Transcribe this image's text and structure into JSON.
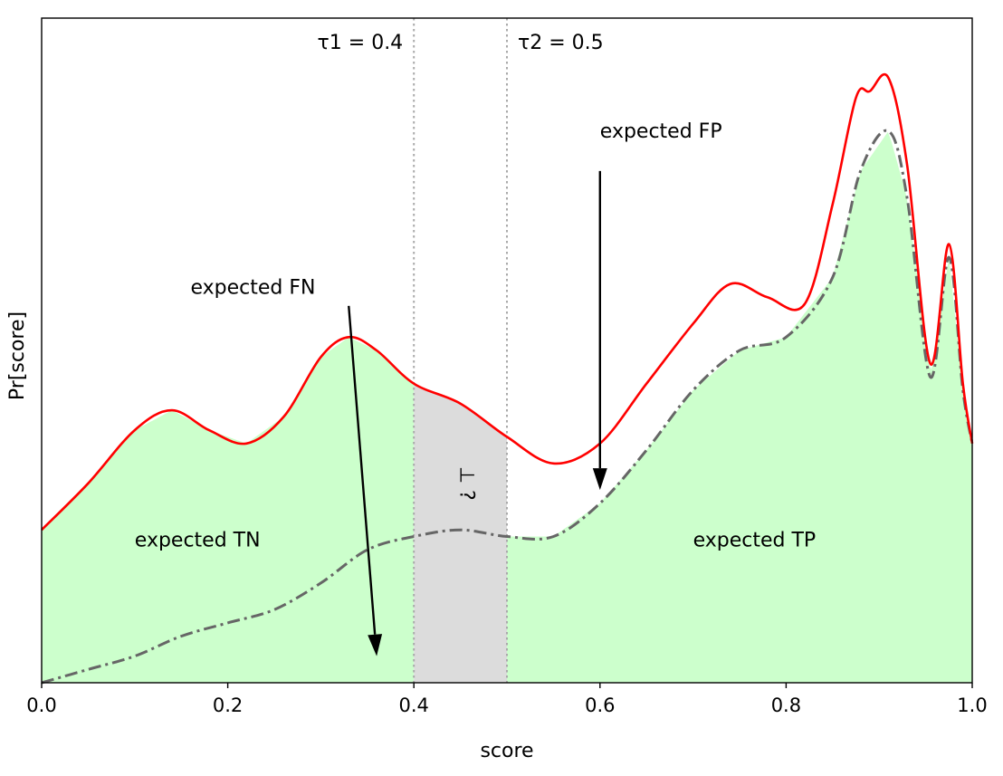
{
  "chart_data": {
    "type": "area",
    "title": "",
    "xlabel": "score",
    "ylabel": "Pr[score]",
    "xlim": [
      0.0,
      1.0
    ],
    "ylim": [
      0.0,
      1.0
    ],
    "grid": false,
    "legend": "none",
    "x_ticks": [
      "0.0",
      "0.2",
      "0.4",
      "0.6",
      "0.8",
      "1.0"
    ],
    "thresholds": [
      {
        "value": 0.4,
        "label": "τ1 = 0.4"
      },
      {
        "value": 0.5,
        "label": "τ2 = 0.5"
      }
    ],
    "series": [
      {
        "id": "total",
        "style": "solid",
        "color": "#ff0000",
        "x": [
          0.0,
          0.05,
          0.1,
          0.14,
          0.18,
          0.22,
          0.26,
          0.3,
          0.33,
          0.36,
          0.4,
          0.45,
          0.5,
          0.55,
          0.6,
          0.65,
          0.7,
          0.74,
          0.78,
          0.82,
          0.85,
          0.875,
          0.89,
          0.91,
          0.93,
          0.955,
          0.975,
          0.99,
          1.0
        ],
        "y": [
          0.23,
          0.3,
          0.38,
          0.41,
          0.38,
          0.36,
          0.4,
          0.49,
          0.52,
          0.5,
          0.45,
          0.42,
          0.37,
          0.33,
          0.36,
          0.45,
          0.54,
          0.6,
          0.58,
          0.57,
          0.72,
          0.88,
          0.89,
          0.91,
          0.78,
          0.48,
          0.66,
          0.45,
          0.36
        ]
      },
      {
        "id": "positive",
        "style": "dashdot",
        "color": "#666666",
        "x": [
          0.0,
          0.05,
          0.1,
          0.15,
          0.2,
          0.25,
          0.3,
          0.35,
          0.4,
          0.45,
          0.5,
          0.55,
          0.6,
          0.65,
          0.7,
          0.75,
          0.8,
          0.85,
          0.88,
          0.91,
          0.93,
          0.955,
          0.975,
          0.99,
          1.0
        ],
        "y": [
          0.0,
          0.02,
          0.04,
          0.07,
          0.09,
          0.11,
          0.15,
          0.2,
          0.22,
          0.23,
          0.22,
          0.22,
          0.27,
          0.35,
          0.44,
          0.5,
          0.52,
          0.61,
          0.77,
          0.83,
          0.73,
          0.46,
          0.64,
          0.44,
          0.36
        ]
      }
    ],
    "annotations": [
      {
        "text": "expected FN",
        "x": 0.16,
        "y": 0.585,
        "arrow_from": [
          0.33,
          0.567
        ],
        "arrow_to": [
          0.36,
          0.04
        ]
      },
      {
        "text": "expected FP",
        "x": 0.6,
        "y": 0.82,
        "arrow_from": [
          0.6,
          0.77
        ],
        "arrow_to": [
          0.6,
          0.29
        ]
      },
      {
        "text": "expected TN",
        "x": 0.1,
        "y": 0.205
      },
      {
        "text": "expected TP",
        "x": 0.7,
        "y": 0.205
      },
      {
        "text": "⊥ ?",
        "x": 0.45,
        "y": 0.3,
        "rotated": true
      }
    ],
    "colors": {
      "total_line": "#ff0000",
      "positive_line": "#666666",
      "fill_true": "#ccffcc",
      "fill_uncertain": "#dcdcdc",
      "threshold_line": "#aaaaaa"
    }
  }
}
